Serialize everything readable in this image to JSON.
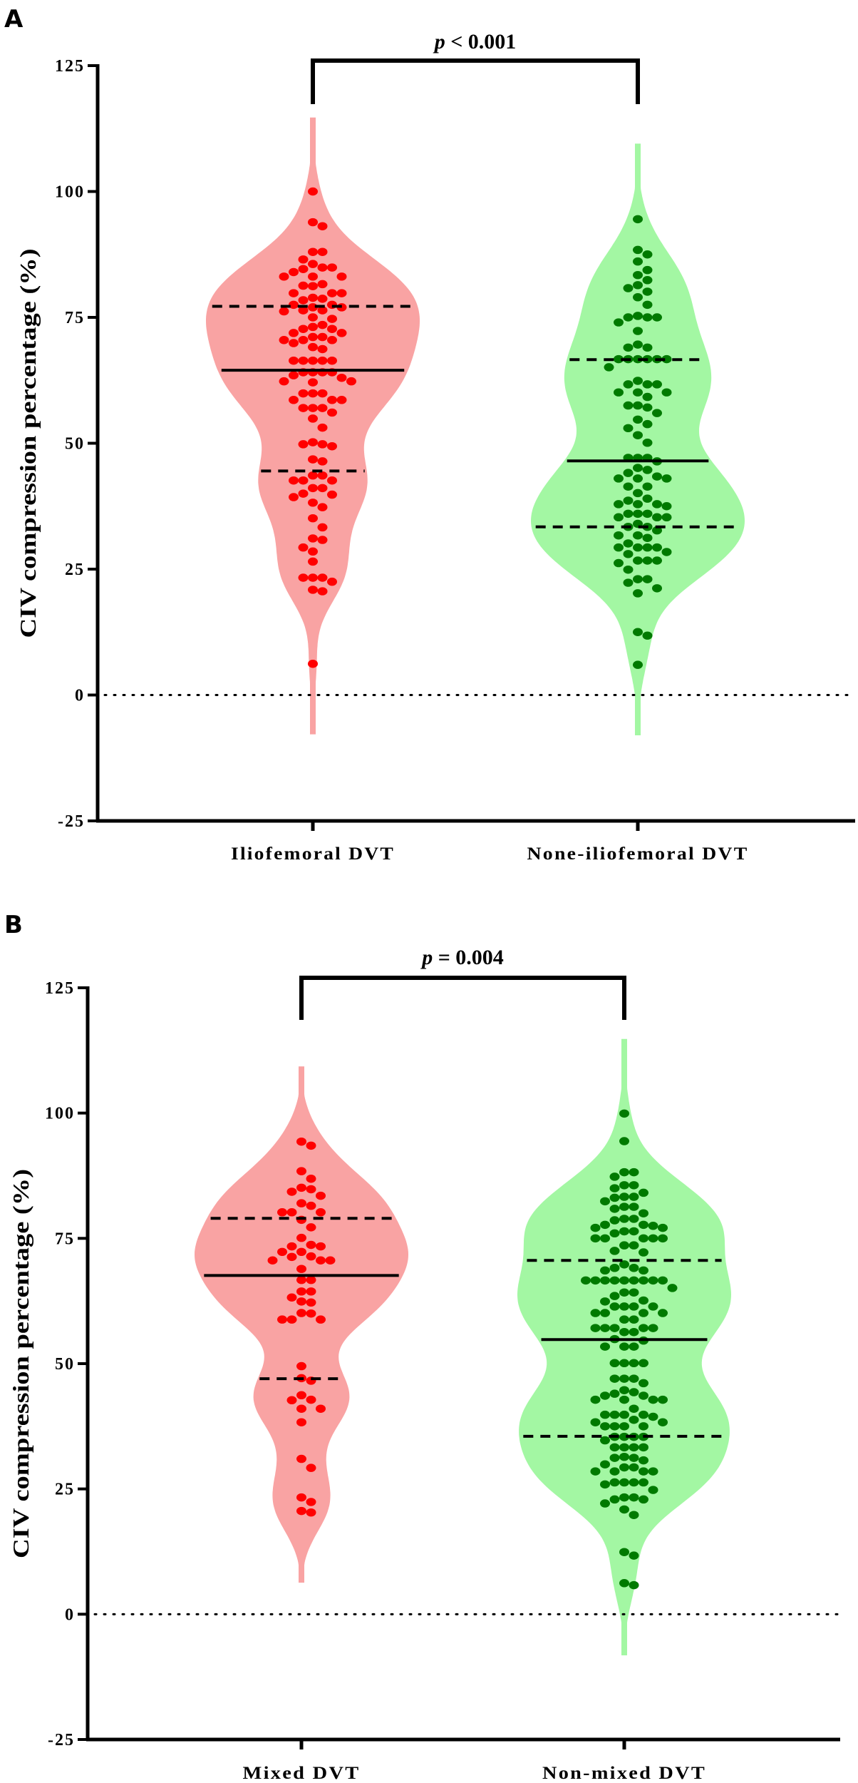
{
  "chart_data": [
    {
      "type": "violin",
      "panel_label": "A",
      "p_value_text": {
        "symbol": "p",
        "rest": " < 0.001"
      },
      "ylabel": "CIV compression percentage (%)",
      "ylim": [
        -25,
        125
      ],
      "yticks": [
        -25,
        0,
        25,
        50,
        75,
        100,
        125
      ],
      "reference_line": 0,
      "categories": [
        "Iliofemoral DVT",
        "None-iliofemoral DVT"
      ],
      "series": [
        {
          "name": "Iliofemoral DVT",
          "point_color": "#FF0000",
          "fill_color": "#F9A3A3",
          "median": 64.5,
          "q1": 44.5,
          "q3": 77.2,
          "values": [
            100,
            93.9,
            93.1,
            88,
            88,
            86.5,
            85.6,
            84.9,
            84.9,
            84.6,
            84,
            83.1,
            83.1,
            83.1,
            81.6,
            81.3,
            81.2,
            79.8,
            79.8,
            79.8,
            78.9,
            78.7,
            78.4,
            77.5,
            77.5,
            77,
            77,
            76.4,
            76.4,
            76.2,
            75,
            74.7,
            73.5,
            73.1,
            72.7,
            72.7,
            71.9,
            71.9,
            71.1,
            71.1,
            70.5,
            70.5,
            70.5,
            69.9,
            69.1,
            68.7,
            66.4,
            66.4,
            66.4,
            66.4,
            66.4,
            64.1,
            64.1,
            64.1,
            64.1,
            63.5,
            63,
            62.3,
            62.3,
            62.1,
            59.9,
            59.9,
            59.9,
            58.6,
            58.6,
            58.6,
            57,
            57,
            57,
            56.1,
            54.9,
            53.1,
            50.2,
            49.8,
            49.8,
            49.4,
            46.8,
            46.4,
            43.6,
            43.6,
            42.6,
            42.6,
            42.6,
            41.1,
            41.1,
            40,
            39.8,
            39.3,
            38.2,
            37.3,
            35.1,
            33.3,
            31.1,
            30.8,
            29.3,
            28.5,
            26.5,
            23.3,
            23.3,
            23.3,
            22.5,
            20.9,
            20.6,
            6.2
          ]
        },
        {
          "name": "None-iliofemoral DVT",
          "point_color": "#007A00",
          "fill_color": "#A3F7A3",
          "median": 46.5,
          "q1": 33.4,
          "q3": 66.6,
          "values": [
            94.5,
            88.4,
            87.5,
            86.1,
            84.4,
            83.4,
            82.4,
            81.4,
            80.8,
            80.1,
            79,
            77.5,
            75.3,
            75,
            75,
            75,
            74,
            72.3,
            69.6,
            69,
            69,
            66.7,
            66.7,
            66.7,
            66.7,
            66.7,
            66.7,
            65.1,
            62.4,
            61.7,
            61.7,
            61.7,
            60.1,
            60.1,
            60.1,
            59.2,
            57.5,
            57.5,
            57.1,
            56,
            54.7,
            53.8,
            53,
            51.6,
            50.1,
            47.1,
            47.1,
            47.1,
            46.4,
            45.1,
            44.7,
            44.1,
            43.4,
            43,
            43,
            43,
            41.4,
            41.4,
            40.1,
            39,
            38.6,
            37.9,
            37.9,
            37.9,
            37.5,
            36,
            36,
            36,
            35.3,
            35.3,
            35.3,
            34,
            33.4,
            33.4,
            32.7,
            31.7,
            31.7,
            31.2,
            30.1,
            29.3,
            29.3,
            29.3,
            29.3,
            28.4,
            28,
            26.7,
            26.7,
            26.7,
            26.2,
            24.9,
            23,
            23,
            22.3,
            21.2,
            20.2,
            12.5,
            11.8,
            6
          ]
        }
      ]
    },
    {
      "type": "violin",
      "panel_label": "B",
      "p_value_text": {
        "symbol": "p",
        "rest": " = 0.004"
      },
      "ylabel": "CIV compression percentage (%)",
      "ylim": [
        -25,
        125
      ],
      "yticks": [
        -25,
        0,
        25,
        50,
        75,
        100,
        125
      ],
      "reference_line": 0,
      "categories": [
        "Mixed DVT",
        "Non-mixed DVT"
      ],
      "series": [
        {
          "name": "Mixed DVT",
          "point_color": "#FF0000",
          "fill_color": "#F9A3A3",
          "median": 67.6,
          "q1": 47,
          "q3": 79,
          "values": [
            94.3,
            93.5,
            88.4,
            86.9,
            85.1,
            84.8,
            84.3,
            83.5,
            82,
            81.5,
            80.2,
            80.2,
            80.2,
            78.7,
            77.2,
            75.1,
            73.7,
            73.4,
            73.4,
            72.3,
            72.3,
            71.4,
            71.3,
            70.6,
            70.6,
            70.6,
            68.9,
            66.7,
            66.7,
            64.4,
            64.4,
            63.2,
            62.4,
            62.2,
            60.1,
            60,
            58.8,
            58.8,
            58.8,
            49.5,
            47.1,
            46.6,
            43.7,
            42.8,
            42.7,
            41,
            41,
            38.3,
            31,
            29.2,
            23.3,
            22.4,
            20.6,
            20.3
          ]
        },
        {
          "name": "Non-mixed DVT",
          "point_color": "#007A00",
          "fill_color": "#A3F7A3",
          "median": 54.8,
          "q1": 35.5,
          "q3": 70.6,
          "values": [
            99.9,
            94.4,
            88.2,
            88.2,
            87.3,
            85.6,
            85.6,
            85,
            84.1,
            83.3,
            83.3,
            83.1,
            82.4,
            81.3,
            81.3,
            80.9,
            80,
            78.9,
            78.9,
            78.6,
            77.7,
            77.7,
            77.5,
            77.1,
            77.1,
            76.4,
            76.4,
            76,
            75,
            75,
            75,
            75,
            75,
            73.6,
            73.6,
            72.5,
            72.2,
            69.8,
            69.1,
            69.1,
            68.6,
            68.6,
            66.6,
            66.6,
            66.6,
            66.6,
            66.6,
            66.6,
            66.6,
            66.6,
            66.6,
            65.1,
            64.2,
            64.2,
            63.5,
            62.6,
            62.4,
            61.4,
            61.4,
            61.4,
            61.4,
            60.1,
            60.1,
            60.1,
            60.1,
            58.8,
            58.8,
            57.1,
            57.1,
            57.1,
            57.1,
            57.1,
            56.3,
            56.3,
            54.9,
            54.6,
            53.4,
            53.4,
            53.4,
            50.1,
            50.1,
            50.1,
            50.1,
            47,
            47,
            47,
            46.1,
            44.7,
            44.3,
            44,
            43.6,
            43.6,
            42.8,
            42.8,
            42.8,
            42.8,
            41,
            39.8,
            39.8,
            39.8,
            39.8,
            39.4,
            38.8,
            38.3,
            38.3,
            37.5,
            37.5,
            37.5,
            37.5,
            35.4,
            35.4,
            35.4,
            35.4,
            34.7,
            33.3,
            33.3,
            33.3,
            33.3,
            31.4,
            31.2,
            31.2,
            30.7,
            29.9,
            29.3,
            29.3,
            28.5,
            28.5,
            28.5,
            28.5,
            26.3,
            26.3,
            26.3,
            26.3,
            25.9,
            24.8,
            23.3,
            23.3,
            22.9,
            22.9,
            22.1,
            20.9,
            19.8,
            12.4,
            11.7,
            6.2,
            5.8
          ]
        }
      ]
    }
  ]
}
